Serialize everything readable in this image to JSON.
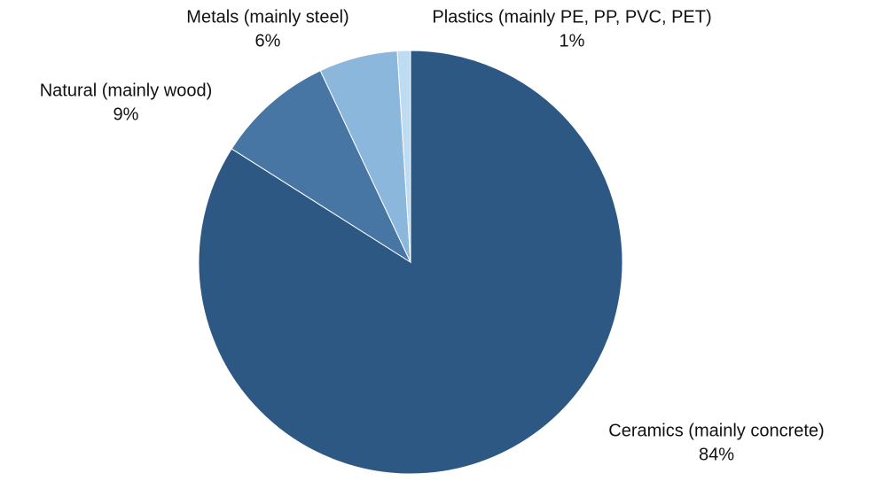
{
  "chart_data": {
    "type": "pie",
    "categories": [
      "Ceramics (mainly concrete)",
      "Natural (mainly wood)",
      "Metals (mainly steel)",
      "Plastics (mainly PE, PP, PVC, PET)"
    ],
    "values": [
      84,
      9,
      6,
      1
    ],
    "value_labels": [
      "84%",
      "9%",
      "6%",
      "1%"
    ],
    "colors": [
      "#2d5884",
      "#4776a4",
      "#8cb7dc",
      "#bddbf1"
    ]
  }
}
